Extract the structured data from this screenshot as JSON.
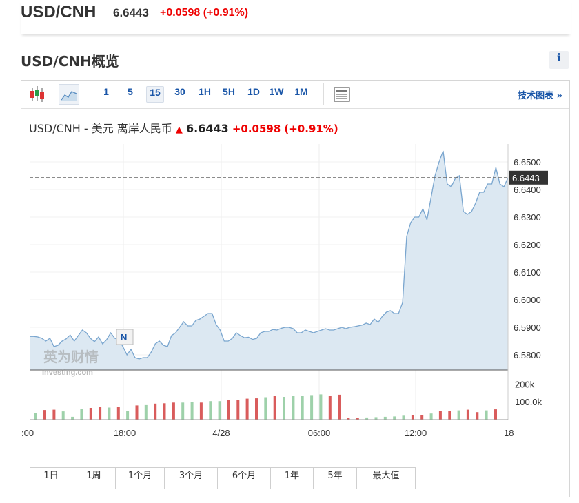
{
  "quote": {
    "symbol": "USD/CNH",
    "price": "6.6443",
    "change": "+0.0598 (+0.91%)"
  },
  "overview": {
    "title": "USD/CNH概览",
    "info_label": "i"
  },
  "toolbar": {
    "timeframes": [
      "1",
      "5",
      "15",
      "30",
      "1H",
      "5H",
      "1D",
      "1W",
      "1M"
    ],
    "active_timeframe": "15",
    "tech_chart_label": "技术图表 »"
  },
  "chart_header": {
    "name": "USD/CNH - 美元 离岸人民币",
    "arrow": "▲",
    "last": "6.6443",
    "change": "+0.0598",
    "change_pct": "(+0.91%)"
  },
  "watermark": {
    "cn": "英为财情",
    "en": "Investing.com"
  },
  "marker_label": "N",
  "range_buttons": [
    "1日",
    "1周",
    "1个月",
    "3个月",
    "6个月",
    "1年",
    "5年",
    "最大值"
  ],
  "chart_data": {
    "type": "area",
    "title": "USD/CNH - 美元 离岸人民币",
    "x_ticks": [
      ":00",
      "18:00",
      "4/28",
      "06:00",
      "12:00",
      "18"
    ],
    "y_ticks": [
      "6.6500",
      "6.6400",
      "6.6300",
      "6.6200",
      "6.6100",
      "6.6000",
      "6.5900",
      "6.5800"
    ],
    "ylim": [
      6.5745,
      6.6565
    ],
    "last_value": 6.6443,
    "last_value_label": "6.6443",
    "series": [
      {
        "values": [
          6.5867,
          6.5867,
          6.5865,
          6.586,
          6.585,
          6.586,
          6.583,
          6.5835,
          6.585,
          6.5858,
          6.5872,
          6.585,
          6.587,
          6.589,
          6.588,
          6.586,
          6.5848,
          6.5865,
          6.584,
          6.5855,
          6.588,
          6.586,
          6.5855,
          6.583,
          6.58,
          6.582,
          6.579,
          6.5785,
          6.579,
          6.579,
          6.581,
          6.584,
          6.585,
          6.5835,
          6.583,
          6.587,
          6.588,
          6.59,
          6.592,
          6.5905,
          6.5905,
          6.5925,
          6.593,
          6.594,
          6.595,
          6.595,
          6.591,
          6.589,
          6.585,
          6.585,
          6.586,
          6.588,
          6.587,
          6.5862,
          6.5864,
          6.5856,
          6.586,
          6.588,
          6.5885,
          6.5885,
          6.5892,
          6.589,
          6.5896,
          6.59,
          6.59,
          6.5895,
          6.588,
          6.588,
          6.589,
          6.5885,
          6.588,
          6.5885,
          6.589,
          6.5895,
          6.589,
          6.589,
          6.5895,
          6.59,
          6.5895,
          6.59,
          6.5902,
          6.5905,
          6.5908,
          6.5915,
          6.591,
          6.593,
          6.5918,
          6.594,
          6.5955,
          6.596,
          6.595,
          6.595,
          6.599,
          6.623,
          6.628,
          6.63,
          6.63,
          6.633,
          6.629,
          6.637,
          6.645,
          6.65,
          6.654,
          6.642,
          6.641,
          6.644,
          6.645,
          6.632,
          6.631,
          6.632,
          6.635,
          6.639,
          6.639,
          6.642,
          6.642,
          6.648,
          6.642,
          6.641,
          6.6443
        ]
      }
    ],
    "volume": {
      "y_ticks": [
        "200k",
        "100.0k"
      ],
      "ylim": [
        0,
        260000
      ],
      "bars": [
        {
          "v": 38000,
          "c": "g"
        },
        {
          "v": 54000,
          "c": "r"
        },
        {
          "v": 56000,
          "c": "r"
        },
        {
          "v": 46000,
          "c": "g"
        },
        {
          "v": 16000,
          "c": "g"
        },
        {
          "v": 60000,
          "c": "g"
        },
        {
          "v": 66000,
          "c": "r"
        },
        {
          "v": 70000,
          "c": "r"
        },
        {
          "v": 68000,
          "c": "g"
        },
        {
          "v": 70000,
          "c": "r"
        },
        {
          "v": 50000,
          "c": "g"
        },
        {
          "v": 80000,
          "c": "r"
        },
        {
          "v": 82000,
          "c": "g"
        },
        {
          "v": 90000,
          "c": "r"
        },
        {
          "v": 92000,
          "c": "r"
        },
        {
          "v": 96000,
          "c": "r"
        },
        {
          "v": 96000,
          "c": "g"
        },
        {
          "v": 98000,
          "c": "g"
        },
        {
          "v": 96000,
          "c": "r"
        },
        {
          "v": 104000,
          "c": "g"
        },
        {
          "v": 104000,
          "c": "g"
        },
        {
          "v": 110000,
          "c": "r"
        },
        {
          "v": 112000,
          "c": "r"
        },
        {
          "v": 118000,
          "c": "r"
        },
        {
          "v": 120000,
          "c": "r"
        },
        {
          "v": 126000,
          "c": "g"
        },
        {
          "v": 134000,
          "c": "r"
        },
        {
          "v": 128000,
          "c": "g"
        },
        {
          "v": 136000,
          "c": "g"
        },
        {
          "v": 136000,
          "c": "g"
        },
        {
          "v": 138000,
          "c": "g"
        },
        {
          "v": 142000,
          "c": "g"
        },
        {
          "v": 136000,
          "c": "r"
        },
        {
          "v": 140000,
          "c": "r"
        },
        {
          "v": 8000,
          "c": "r"
        },
        {
          "v": 8000,
          "c": "r"
        },
        {
          "v": 12000,
          "c": "g"
        },
        {
          "v": 14000,
          "c": "g"
        },
        {
          "v": 16000,
          "c": "g"
        },
        {
          "v": 18000,
          "c": "g"
        },
        {
          "v": 22000,
          "c": "g"
        },
        {
          "v": 24000,
          "c": "r"
        },
        {
          "v": 26000,
          "c": "r"
        },
        {
          "v": 34000,
          "c": "g"
        },
        {
          "v": 50000,
          "c": "r"
        },
        {
          "v": 48000,
          "c": "r"
        },
        {
          "v": 52000,
          "c": "g"
        },
        {
          "v": 56000,
          "c": "r"
        },
        {
          "v": 42000,
          "c": "r"
        },
        {
          "v": 52000,
          "c": "g"
        },
        {
          "v": 58000,
          "c": "r"
        }
      ]
    }
  },
  "colors": {
    "line": "#7aa6cf",
    "area": "#dce8f2",
    "up": "#e00000",
    "bar_red": "#d95c5c",
    "bar_green": "#9ed1aa",
    "last_label_bg": "#333333",
    "accent": "#1a56a8"
  }
}
